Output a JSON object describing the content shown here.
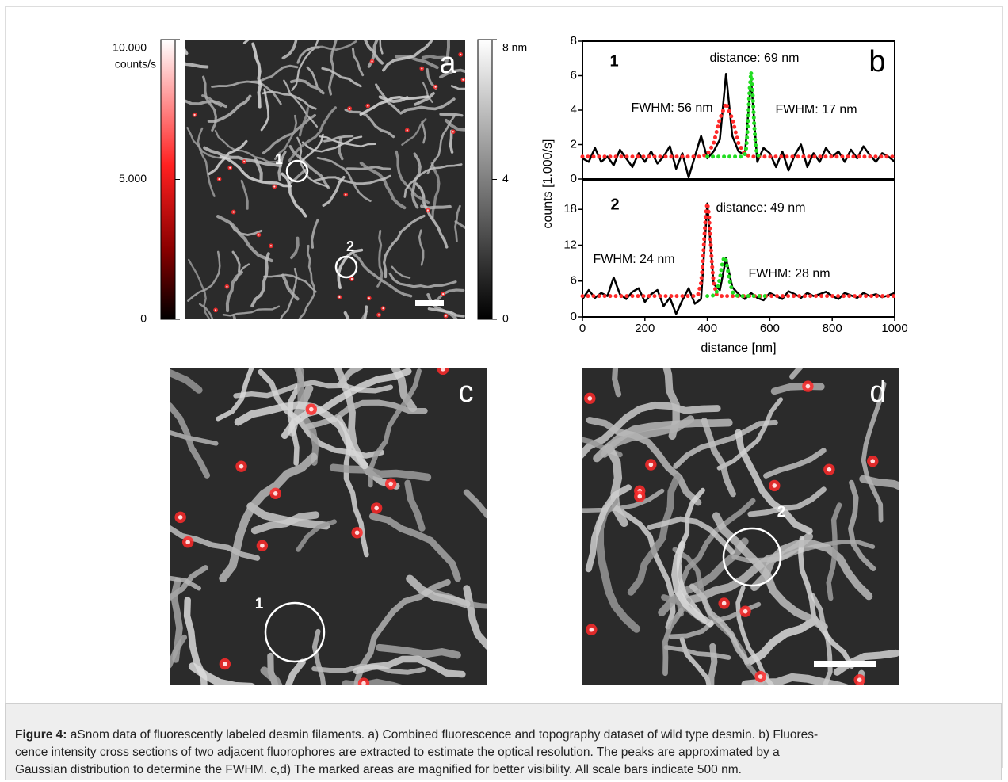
{
  "panel_a": {
    "label": "a",
    "fluorescence_scale": {
      "lim": [
        0,
        10000
      ],
      "ticks": [
        {
          "value": 10000,
          "label": "10.000"
        },
        {
          "value": 5000,
          "label": "5.000"
        },
        0
      ],
      "unit": "counts/s"
    },
    "height_scale": {
      "lim": [
        0,
        8
      ],
      "ticks": [
        {
          "value": 8,
          "label": "8 nm"
        },
        4,
        0
      ]
    },
    "markers": [
      "1",
      "2"
    ]
  },
  "panel_b": {
    "label": "b",
    "x_label": "distance [nm]",
    "y_label": "counts [1.000/s]"
  },
  "chart_data": [
    {
      "type": "line",
      "annotations": [
        "1",
        "distance: 69 nm",
        "FWHM: 56 nm",
        "FWHM: 17 nm"
      ],
      "xlim": [
        0,
        1000
      ],
      "ylim": [
        0,
        8
      ],
      "yticks": [
        0,
        2,
        4,
        6,
        8
      ],
      "series": [
        {
          "color": "#000000",
          "style": "solid",
          "x": [
            0,
            20,
            40,
            60,
            80,
            100,
            120,
            140,
            160,
            180,
            200,
            220,
            240,
            260,
            280,
            300,
            320,
            340,
            360,
            380,
            400,
            420,
            440,
            460,
            480,
            500,
            520,
            540,
            560,
            580,
            600,
            620,
            640,
            660,
            680,
            700,
            720,
            740,
            760,
            780,
            800,
            820,
            840,
            860,
            880,
            900,
            920,
            940,
            960,
            980,
            1000
          ],
          "values": [
            1.2,
            1.0,
            1.8,
            1.0,
            1.3,
            0.8,
            1.7,
            1.2,
            0.7,
            1.5,
            1.0,
            1.6,
            0.9,
            1.3,
            1.9,
            0.6,
            1.5,
            0.1,
            1.3,
            2.5,
            1.2,
            1.6,
            2.3,
            6.1,
            2.5,
            1.6,
            1.4,
            5.8,
            1.0,
            1.8,
            1.5,
            0.7,
            1.6,
            0.5,
            1.4,
            2.0,
            0.7,
            1.5,
            1.0,
            1.8,
            1.3,
            1.6,
            1.0,
            1.7,
            1.2,
            1.9,
            1.4,
            1.0,
            1.5,
            1.3,
            1.0
          ]
        },
        {
          "color": "#ff2a2a",
          "style": "dotted",
          "x": [
            0,
            20,
            40,
            60,
            80,
            100,
            120,
            140,
            160,
            180,
            200,
            220,
            240,
            260,
            280,
            300,
            320,
            340,
            360,
            380,
            400,
            420,
            440,
            460,
            480,
            500,
            520,
            540,
            560,
            580,
            600,
            620,
            640,
            660,
            680,
            700,
            720,
            740,
            760,
            780,
            800,
            820,
            840,
            860,
            880,
            900,
            920,
            940,
            960,
            980,
            1000
          ],
          "values": [
            1.3,
            1.3,
            1.3,
            1.3,
            1.3,
            1.3,
            1.3,
            1.3,
            1.3,
            1.3,
            1.3,
            1.3,
            1.3,
            1.3,
            1.3,
            1.3,
            1.3,
            1.3,
            1.3,
            1.3,
            1.43,
            2.06,
            3.5,
            4.4,
            3.5,
            2.06,
            1.43,
            1.3,
            1.3,
            1.3,
            1.3,
            1.3,
            1.3,
            1.3,
            1.3,
            1.3,
            1.3,
            1.3,
            1.3,
            1.3,
            1.3,
            1.3,
            1.3,
            1.3,
            1.3,
            1.3,
            1.3,
            1.3,
            1.3,
            1.3,
            1.3
          ]
        },
        {
          "color": "#22dd22",
          "style": "dotted",
          "x": [
            400,
            420,
            440,
            460,
            480,
            500,
            510,
            520,
            525,
            530,
            535,
            540,
            545,
            550,
            555,
            560,
            570,
            580
          ],
          "values": [
            1.3,
            1.3,
            1.3,
            1.3,
            1.3,
            1.3,
            1.3,
            1.4,
            1.86,
            3.17,
            5.15,
            6.2,
            5.15,
            3.17,
            1.86,
            1.4,
            1.3,
            1.3
          ]
        }
      ]
    },
    {
      "type": "line",
      "annotations": [
        "2",
        "distance: 49 nm",
        "FWHM: 24 nm",
        "FWHM: 28 nm"
      ],
      "xlim": [
        0,
        1000
      ],
      "xticks": [
        0,
        200,
        400,
        600,
        800,
        1000
      ],
      "ylim": [
        0,
        22.8
      ],
      "yticks": [
        0,
        6,
        12,
        18
      ],
      "series": [
        {
          "color": "#000000",
          "style": "solid",
          "x": [
            0,
            20,
            40,
            60,
            80,
            100,
            120,
            140,
            160,
            180,
            200,
            220,
            240,
            260,
            280,
            300,
            320,
            340,
            360,
            380,
            400,
            420,
            440,
            460,
            480,
            500,
            520,
            540,
            560,
            580,
            600,
            620,
            640,
            660,
            680,
            700,
            720,
            740,
            760,
            780,
            800,
            820,
            840,
            860,
            880,
            900,
            920,
            940,
            960,
            980,
            1000
          ],
          "values": [
            3.0,
            4.5,
            3.2,
            4.0,
            3.5,
            6.6,
            3.8,
            3.0,
            4.2,
            4.8,
            2.5,
            3.8,
            4.5,
            1.8,
            3.2,
            0.5,
            2.8,
            4.8,
            2.2,
            3.0,
            19,
            5.5,
            4.5,
            9.8,
            5.0,
            3.8,
            3.0,
            4.0,
            3.2,
            2.8,
            4.0,
            3.5,
            3.0,
            4.3,
            3.8,
            3.2,
            4.0,
            3.5,
            3.8,
            4.2,
            3.5,
            3.0,
            4.0,
            3.6,
            3.2,
            4.0,
            3.5,
            3.8,
            3.3,
            3.6,
            4.0
          ]
        },
        {
          "color": "#ff2a2a",
          "style": "dotted",
          "x": [
            0,
            20,
            40,
            60,
            80,
            100,
            120,
            140,
            160,
            180,
            200,
            220,
            240,
            260,
            280,
            300,
            320,
            340,
            360,
            370,
            380,
            385,
            390,
            395,
            400,
            405,
            410,
            415,
            420,
            430,
            440,
            460,
            480,
            500,
            520,
            540,
            560,
            580,
            600,
            620,
            640,
            660,
            680,
            700,
            720,
            740,
            760,
            780,
            800,
            820,
            840,
            860,
            880,
            900,
            920,
            940,
            960,
            980,
            1000
          ],
          "values": [
            3.5,
            3.5,
            3.5,
            3.5,
            3.5,
            3.5,
            3.5,
            3.5,
            3.5,
            3.5,
            3.5,
            3.5,
            3.5,
            3.5,
            3.5,
            3.5,
            3.5,
            3.5,
            3.5,
            3.7,
            5.77,
            8.76,
            13.1,
            17.25,
            19,
            17.25,
            13.1,
            8.76,
            5.77,
            3.7,
            3.5,
            3.5,
            3.5,
            3.5,
            3.5,
            3.5,
            3.5,
            3.5,
            3.5,
            3.5,
            3.5,
            3.5,
            3.5,
            3.5,
            3.5,
            3.5,
            3.5,
            3.5,
            3.5,
            3.5,
            3.5,
            3.5,
            3.5,
            3.5,
            3.5,
            3.5,
            3.5,
            3.5,
            3.5
          ]
        },
        {
          "color": "#22dd22",
          "style": "dotted",
          "x": [
            400,
            420,
            430,
            440,
            445,
            450,
            455,
            460,
            465,
            470,
            480,
            490,
            500,
            520,
            540,
            560,
            580,
            600
          ],
          "values": [
            3.5,
            3.59,
            4.21,
            6.43,
            8.06,
            9.45,
            10,
            9.45,
            8.06,
            6.43,
            4.21,
            3.59,
            3.5,
            3.5,
            3.5,
            3.5,
            3.5,
            3.5
          ]
        }
      ]
    }
  ],
  "panel_c": {
    "label": "c",
    "marker": "1"
  },
  "panel_d": {
    "label": "d",
    "marker": "2"
  },
  "caption": {
    "label": "Figure 4:",
    "lines": [
      "aSnom data of fluorescently labeled desmin filaments. a) Combined fluorescence and topography dataset of wild type desmin. b) Fluores-",
      "cence intensity cross sections of two adjacent fluorophores are extracted to estimate the optical resolution. The peaks are approximated by a",
      "Gaussian distribution to determine the FWHM. c,d) The marked areas are magnified for better visibility. All scale bars indicate 500 nm."
    ]
  }
}
